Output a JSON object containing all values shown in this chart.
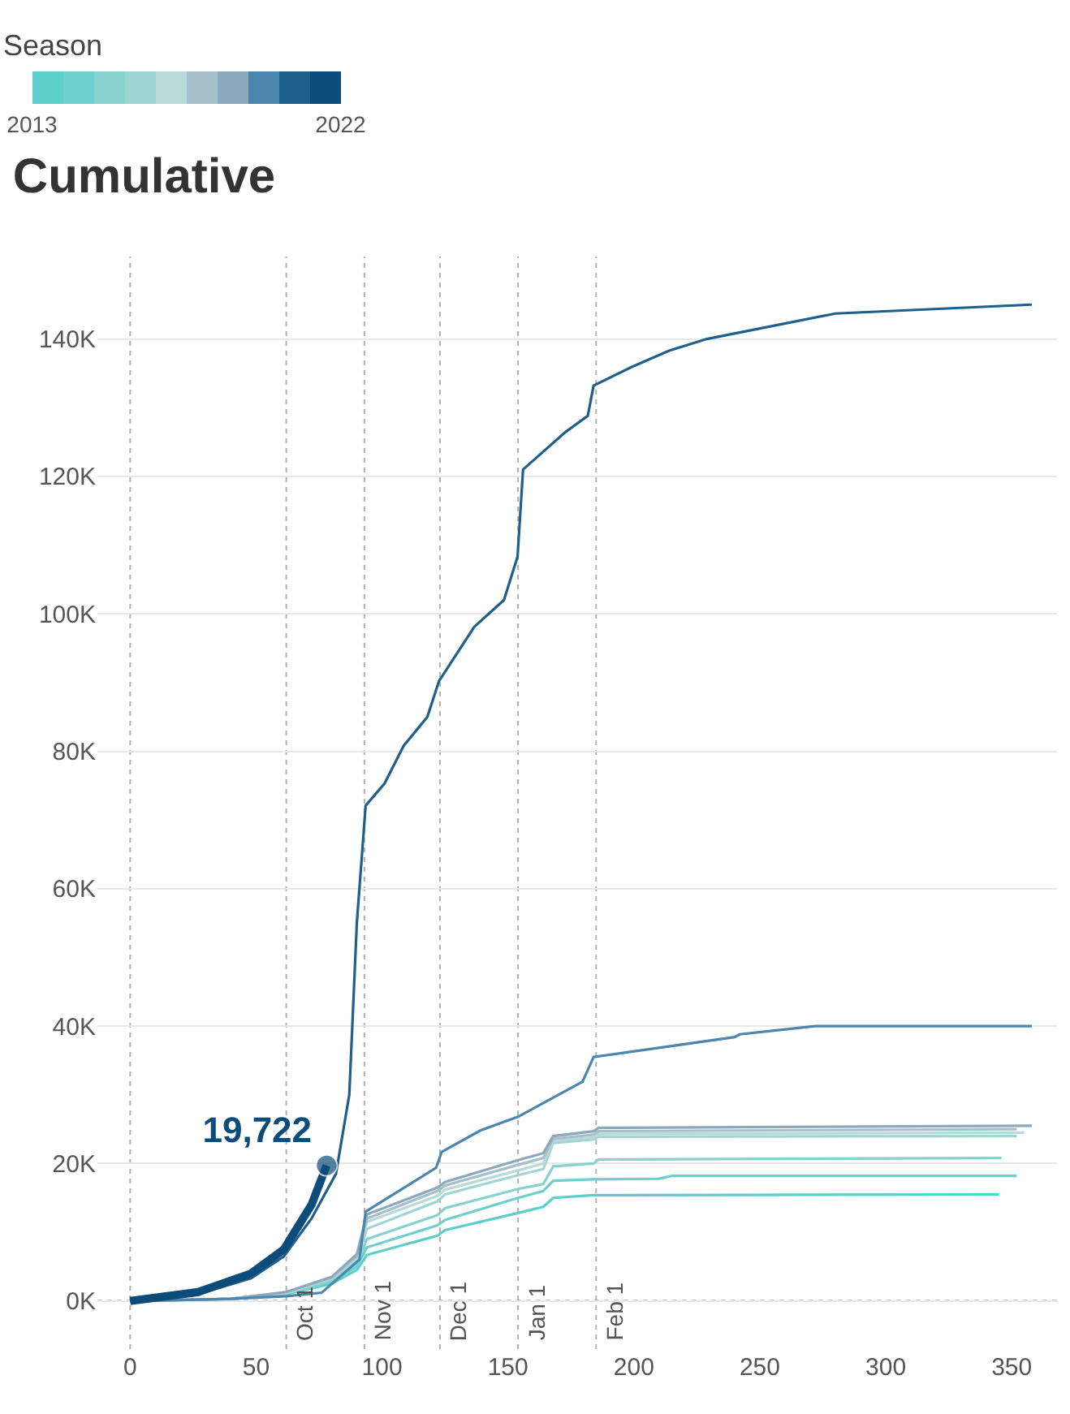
{
  "chart_data": {
    "type": "line",
    "title": "Cumulative",
    "clabel": "Season",
    "clim": [
      2013,
      2022
    ],
    "cticks": [
      2013,
      2022
    ],
    "xlim": [
      -13,
      368
    ],
    "xticks": [
      0,
      50,
      100,
      150,
      200,
      250,
      300,
      350
    ],
    "ylim": [
      -7000,
      152000
    ],
    "yticks": [
      {
        "value": 0,
        "label": "0K"
      },
      {
        "value": 20000,
        "label": "20K"
      },
      {
        "value": 40000,
        "label": "40K"
      },
      {
        "value": 60000,
        "label": "60K"
      },
      {
        "value": 80000,
        "label": "80K"
      },
      {
        "value": 100000,
        "label": "100K"
      },
      {
        "value": 120000,
        "label": "120K"
      },
      {
        "value": 140000,
        "label": "140K"
      }
    ],
    "grid": "y",
    "marker": "none",
    "line_style": "solid",
    "ref_lines": [
      {
        "axis": "x",
        "value": 0,
        "label": null
      },
      {
        "axis": "x",
        "value": 62,
        "label": "Oct 1"
      },
      {
        "axis": "x",
        "value": 93,
        "label": "Nov 1"
      },
      {
        "axis": "x",
        "value": 123,
        "label": "Dec 1"
      },
      {
        "axis": "x",
        "value": 154,
        "label": "Jan 1"
      },
      {
        "axis": "x",
        "value": 185,
        "label": "Feb 1"
      },
      {
        "axis": "y",
        "value": 0,
        "label": null
      }
    ],
    "series": [
      {
        "color": "#5ccfcb",
        "x": [
          0,
          40,
          62,
          80,
          90,
          94,
          122,
          125,
          154,
          164,
          168,
          184,
          345
        ],
        "values": [
          0,
          300,
          1000,
          2500,
          4500,
          6700,
          9500,
          10300,
          12800,
          13700,
          15000,
          15400,
          15500
        ]
      },
      {
        "color": "#6ed0cc",
        "x": [
          0,
          40,
          62,
          80,
          90,
          94,
          122,
          125,
          154,
          164,
          168,
          184,
          210,
          215,
          352
        ],
        "values": [
          0,
          300,
          1000,
          2800,
          5000,
          7800,
          11000,
          11800,
          15000,
          16000,
          17500,
          17700,
          17800,
          18200,
          18200
        ]
      },
      {
        "color": "#86d2cf",
        "x": [
          0,
          40,
          62,
          80,
          90,
          94,
          122,
          125,
          154,
          164,
          168,
          184,
          186,
          346
        ],
        "values": [
          0,
          300,
          1100,
          3000,
          5500,
          9000,
          12500,
          13500,
          16300,
          17000,
          19600,
          20000,
          20600,
          20800
        ]
      },
      {
        "color": "#a0d5d4",
        "x": [
          0,
          40,
          62,
          80,
          90,
          94,
          122,
          125,
          154,
          164,
          168,
          184,
          186,
          352
        ],
        "values": [
          0,
          300,
          1200,
          3200,
          6000,
          10500,
          14500,
          15500,
          18300,
          19200,
          23000,
          23500,
          23900,
          24000
        ]
      },
      {
        "color": "#b8d9d8",
        "x": [
          0,
          40,
          62,
          80,
          90,
          94,
          122,
          125,
          154,
          164,
          168,
          184,
          186,
          355
        ],
        "values": [
          0,
          300,
          1200,
          3300,
          6300,
          11500,
          15300,
          16200,
          19000,
          20000,
          23300,
          23800,
          24300,
          24500
        ]
      },
      {
        "color": "#a6bfca",
        "x": [
          0,
          40,
          62,
          80,
          90,
          94,
          122,
          125,
          154,
          164,
          168,
          184,
          186,
          352
        ],
        "values": [
          0,
          300,
          1300,
          3400,
          6500,
          12000,
          16000,
          16800,
          19800,
          20800,
          23600,
          24200,
          24700,
          25000
        ]
      },
      {
        "color": "#8ca9bc",
        "x": [
          0,
          40,
          62,
          80,
          90,
          94,
          122,
          125,
          154,
          164,
          168,
          184,
          186,
          358
        ],
        "values": [
          0,
          300,
          1300,
          3500,
          6800,
          12600,
          16500,
          17300,
          20500,
          21500,
          24000,
          24700,
          25200,
          25500
        ]
      },
      {
        "color": "#4a86ae",
        "x": [
          0,
          40,
          62,
          76,
          91,
          93.5,
          104,
          121.5,
          123.7,
          139,
          154,
          179.6,
          184,
          240,
          242,
          272,
          358
        ],
        "values": [
          0,
          300,
          700,
          1200,
          6000,
          13000,
          15400,
          19400,
          21700,
          24800,
          26800,
          31900,
          35500,
          38400,
          38800,
          40000,
          40000
        ]
      },
      {
        "color": "#1f5f8b",
        "x": [
          0,
          27,
          48,
          61,
          72,
          81.7,
          87,
          90,
          93.5,
          101,
          108.6,
          118,
          122.6,
          136.6,
          148.4,
          153.8,
          156,
          173,
          181.7,
          184,
          199,
          214,
          229,
          280,
          358
        ],
        "values": [
          0,
          1000,
          3300,
          6500,
          12000,
          18500,
          30000,
          55000,
          72100,
          75300,
          80800,
          85000,
          90200,
          98100,
          102000,
          108300,
          121000,
          126500,
          128800,
          133200,
          135900,
          138300,
          140000,
          143700,
          145000
        ]
      },
      {
        "color": "#0d4c7a",
        "x": [
          0,
          27,
          48,
          61,
          72,
          78
        ],
        "values": [
          0,
          1300,
          4000,
          7500,
          14000,
          19722
        ],
        "value_labels": [
          null,
          null,
          null,
          null,
          null,
          "19,722"
        ]
      }
    ]
  }
}
